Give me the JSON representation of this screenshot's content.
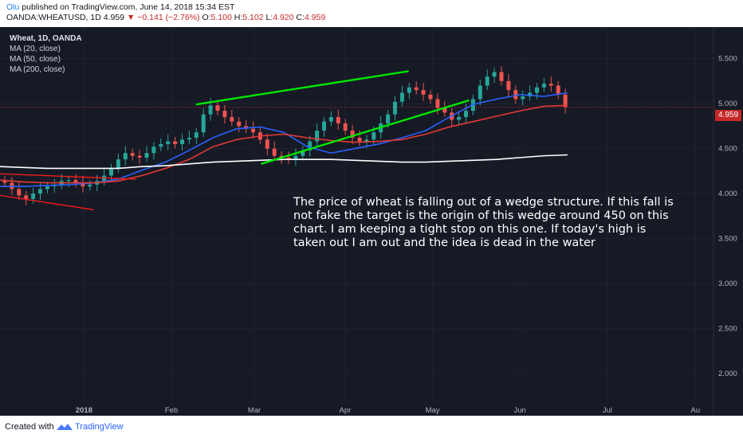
{
  "header": {
    "author": "Olu",
    "published": " published on TradingView.com, June 14, 2018 15:34 EST",
    "symbol": "OANDA:WHEATUSD, 1D",
    "last": "4.959",
    "change_arrow": "▼",
    "change": "−0.141 (−2.76%)",
    "o_label": "O:",
    "o_value": "5.100",
    "h_label": "H:",
    "h_value": "5.102",
    "l_label": "L:",
    "l_value": "4.920",
    "c_label": "C:",
    "c_value": "4.959"
  },
  "legend": {
    "title": "Wheat, 1D, OANDA",
    "ma20": "MA (20, close)",
    "ma50": "MA (50, close)",
    "ma200": "MA (200, close)"
  },
  "annotation": "The price of wheat is falling out of a wedge structure. If this fall is not fake the target is the origin of this wedge around 450 on this chart. I am keeping a tight stop on this one. If today's high is taken out I am out and the idea is dead in the water",
  "price_tag": "4.959",
  "footer": {
    "created": "Created with",
    "brand": "TradingView"
  },
  "colors": {
    "background": "#161a25",
    "up": "#26a69a",
    "down": "#ef5350",
    "ma20": "#2962ff",
    "ma50": "#e53935",
    "ma200": "#ffffff",
    "wedge": "#00e600",
    "support": "#ff1a1a"
  },
  "chart_data": {
    "type": "candlestick",
    "title": "Wheat, 1D, OANDA",
    "x_ticks": [
      "2018",
      "Feb",
      "Mar",
      "Apr",
      "May",
      "Jun",
      "Jul",
      "Au"
    ],
    "y_ticks": [
      "5.500",
      "5.000",
      "4.500",
      "4.000",
      "3.500",
      "3.000",
      "2.500",
      "2.000"
    ],
    "ylim": [
      1.55,
      5.85
    ],
    "series": [
      {
        "name": "MA (20, close)",
        "values": [
          4.08,
          4.08,
          4.09,
          4.1,
          4.12,
          4.16,
          4.26,
          4.35,
          4.48,
          4.62,
          4.72,
          4.74,
          4.68,
          4.52,
          4.45,
          4.5,
          4.55,
          4.62,
          4.7,
          4.85,
          4.99,
          5.05,
          5.1,
          5.08,
          5.12
        ]
      },
      {
        "name": "MA (50, close)",
        "values": [
          4.15,
          4.13,
          4.12,
          4.12,
          4.12,
          4.14,
          4.2,
          4.28,
          4.38,
          4.52,
          4.6,
          4.64,
          4.66,
          4.62,
          4.59,
          4.57,
          4.58,
          4.6,
          4.66,
          4.74,
          4.8,
          4.86,
          4.92,
          4.97,
          4.98
        ]
      },
      {
        "name": "MA (200, close)",
        "values": [
          4.3,
          4.29,
          4.28,
          4.28,
          4.28,
          4.28,
          4.3,
          4.31,
          4.33,
          4.35,
          4.36,
          4.37,
          4.38,
          4.38,
          4.38,
          4.37,
          4.36,
          4.35,
          4.35,
          4.36,
          4.37,
          4.38,
          4.4,
          4.42,
          4.43
        ]
      }
    ],
    "ma_x_index_range": [
      0,
      24
    ],
    "wedge_upper": [
      [
        0.345,
        4.99
      ],
      [
        0.72,
        5.36
      ]
    ],
    "wedge_lower": [
      [
        0.46,
        4.33
      ],
      [
        0.79,
        5.04
      ]
    ],
    "support_lines": [
      [
        [
          0.0,
          4.22
        ],
        [
          0.24,
          4.16
        ]
      ],
      [
        [
          0.0,
          3.98
        ],
        [
          0.165,
          3.82
        ]
      ]
    ]
  }
}
